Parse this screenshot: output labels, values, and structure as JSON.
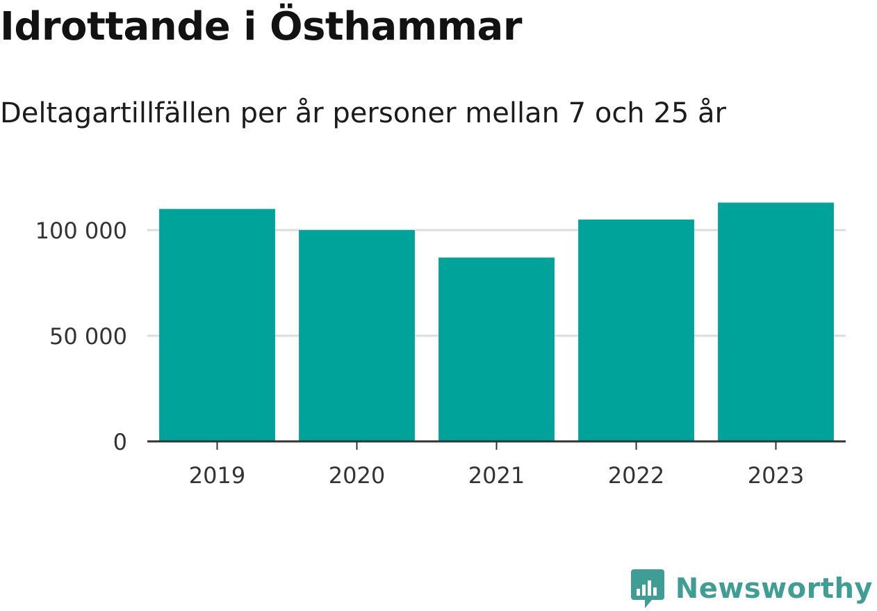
{
  "title": "Idrottande i Östhammar",
  "subtitle": "Deltagartillfällen per år personer mellan 7 och 25 år",
  "brand": {
    "name": "Newsworthy",
    "icon": "bar-chart-speech-bubble-icon",
    "color": "#3f9e93"
  },
  "colors": {
    "bar": "#00a399",
    "grid": "#dddddd",
    "axis": "#333333"
  },
  "chart_data": {
    "type": "bar",
    "categories": [
      "2019",
      "2020",
      "2021",
      "2022",
      "2023"
    ],
    "values": [
      110000,
      100000,
      87000,
      105000,
      113000
    ],
    "ylim": [
      0,
      120000
    ],
    "yticks": [
      0,
      50000,
      100000
    ],
    "ytick_labels": [
      "0",
      "50 000",
      "100 000"
    ],
    "grid": true,
    "xlabel": "",
    "ylabel": ""
  }
}
